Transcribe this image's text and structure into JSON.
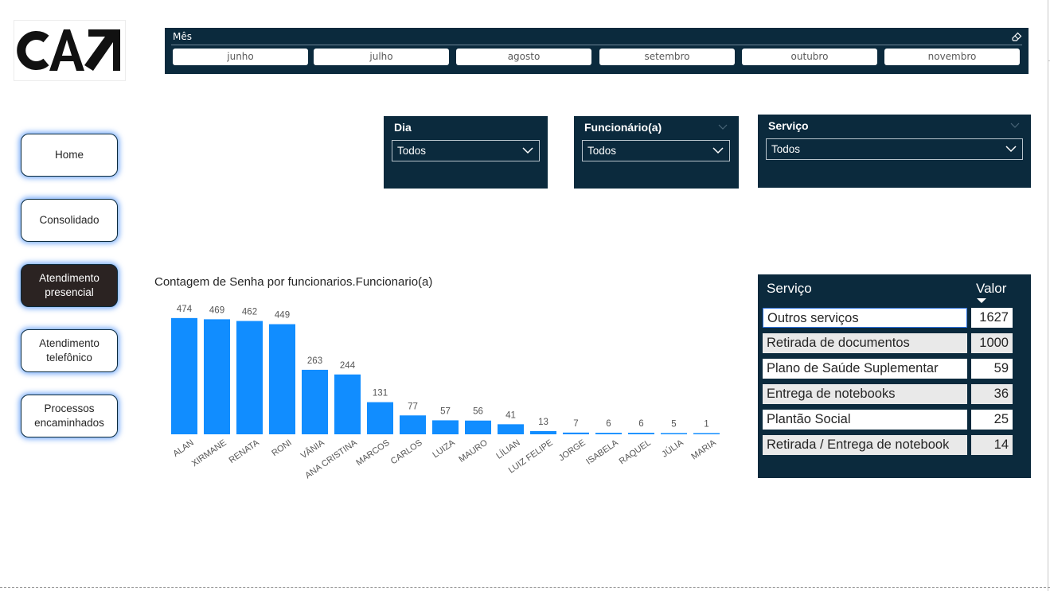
{
  "logo": {
    "text": "CA↗"
  },
  "month_slicer": {
    "title": "Mês",
    "eraser_icon": "eraser-icon",
    "months": [
      "junho",
      "julho",
      "agosto",
      "setembro",
      "outubro",
      "novembro"
    ]
  },
  "nav": {
    "items": [
      {
        "label": "Home",
        "active": false
      },
      {
        "label": "Consolidado",
        "active": false
      },
      {
        "label": "Atendimento presencial",
        "active": true
      },
      {
        "label": "Atendimento telefônico",
        "active": false
      },
      {
        "label": "Processos encaminhados",
        "active": false
      }
    ]
  },
  "slicers": {
    "dia": {
      "label": "Dia",
      "value": "Todos"
    },
    "funcionario": {
      "label": "Funcionário(a)",
      "value": "Todos"
    },
    "servico": {
      "label": "Serviço",
      "value": "Todos"
    }
  },
  "colors": {
    "panel": "#0b2a3d",
    "bar": "#118dff",
    "active_nav": "#2b2322"
  },
  "chart_data": {
    "type": "bar",
    "title": "Contagem de Senha por funcionarios.Funcionario(a)",
    "xlabel": "",
    "ylabel": "",
    "categories": [
      "ALAN",
      "XIRMANE",
      "RENATA",
      "RONI",
      "VÂNIA",
      "ANA CRISTINA",
      "MARCOS",
      "CARLOS",
      "LUIZA",
      "MAURO",
      "LÍLIAN",
      "LUIZ FELIPE",
      "JORGE",
      "ISABELA",
      "RAQUEL",
      "JÚLIA",
      "MARIA"
    ],
    "values": [
      474,
      469,
      462,
      449,
      263,
      244,
      131,
      77,
      57,
      56,
      41,
      13,
      7,
      6,
      6,
      5,
      1
    ],
    "ylim": [
      0,
      480
    ],
    "grid": false,
    "data_labels": true
  },
  "service_table": {
    "header_service": "Serviço",
    "header_value": "Valor",
    "rows": [
      {
        "service": "Outros serviços",
        "value": "1627"
      },
      {
        "service": "Retirada de documentos",
        "value": "1000"
      },
      {
        "service": "Plano de Saúde Suplementar",
        "value": "59"
      },
      {
        "service": "Entrega de notebooks",
        "value": "36"
      },
      {
        "service": "Plantão Social",
        "value": "25"
      },
      {
        "service": "Retirada / Entrega de notebook",
        "value": "14"
      }
    ]
  }
}
